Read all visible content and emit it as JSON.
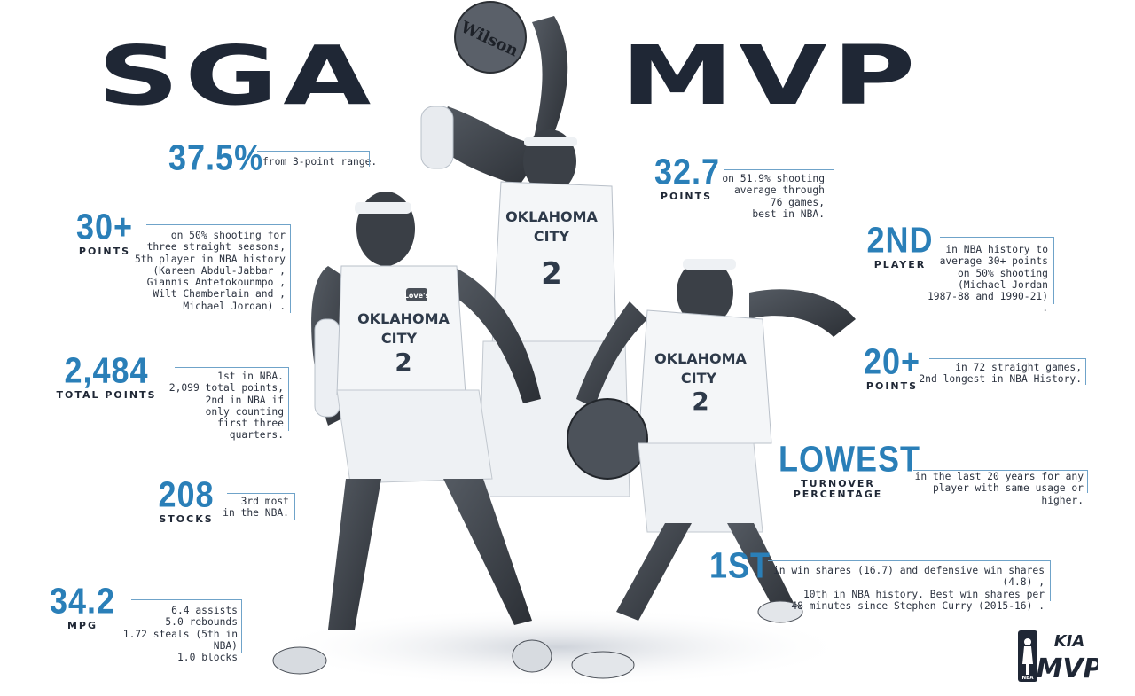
{
  "title": {
    "left": "SGA",
    "right": "MVP"
  },
  "stats": {
    "three_pt": {
      "value": "37.5%",
      "desc": "from 3-point range."
    },
    "thirty_plus": {
      "value": "30+",
      "label": "POINTS",
      "desc": [
        "on 50% shooting for",
        "three straight seasons,",
        "5th player in NBA history",
        "(Kareem Abdul-Jabbar ,",
        "Giannis Antetokounmpo ,",
        "Wilt Chamberlain and ,",
        "Michael Jordan) ."
      ]
    },
    "total_points": {
      "value": "2,484",
      "label": "TOTAL POINTS",
      "desc": [
        "1st in NBA.",
        "2,099 total points,",
        "2nd in NBA if",
        "only counting",
        "first three quarters."
      ]
    },
    "stocks": {
      "value": "208",
      "label": "STOCKS",
      "desc": [
        "3rd most",
        "in the NBA."
      ]
    },
    "mpg": {
      "value": "34.2",
      "label": "MPG",
      "desc": [
        "6.4 assists",
        "5.0 rebounds",
        "1.72 steals (5th in NBA)",
        "1.0 blocks"
      ]
    },
    "points_avg": {
      "value": "32.7",
      "label": "POINTS",
      "desc": [
        "on 51.9% shooting",
        "average through",
        "76 games,",
        "best in NBA."
      ]
    },
    "second_player": {
      "value": "2ND",
      "label": "PLAYER",
      "desc": [
        "in NBA history to",
        "average 30+ points",
        "on 50% shooting",
        "(Michael Jordan",
        "1987-88 and 1990-21) ."
      ]
    },
    "twenty_plus": {
      "value": "20+",
      "label": "POINTS",
      "desc": [
        "in 72 straight games,",
        "2nd longest in NBA History."
      ]
    },
    "lowest": {
      "value": "LOWEST",
      "label": [
        "TURNOVER",
        "PERCENTAGE"
      ],
      "desc": [
        "in the last 20 years for any",
        "player with same usage or higher."
      ]
    },
    "first": {
      "value": "1ST",
      "desc": [
        "in win shares (16.7) and defensive win shares (4.8) ,",
        "10th in NBA history. Best win shares per",
        "48 minutes since Stephen Curry (2015-16) ."
      ]
    }
  },
  "jersey": {
    "team_line1": "OKLAHOMA",
    "team_line2": "CITY",
    "number": "2",
    "sponsor": "Love's"
  },
  "ball_brand": "Wilson",
  "logo": {
    "league": "NBA",
    "sponsor": "KIA",
    "award": "MVP"
  },
  "colors": {
    "accent": "#2a7fb8",
    "navy": "#1f2735",
    "rule": "#6fa3c9"
  }
}
